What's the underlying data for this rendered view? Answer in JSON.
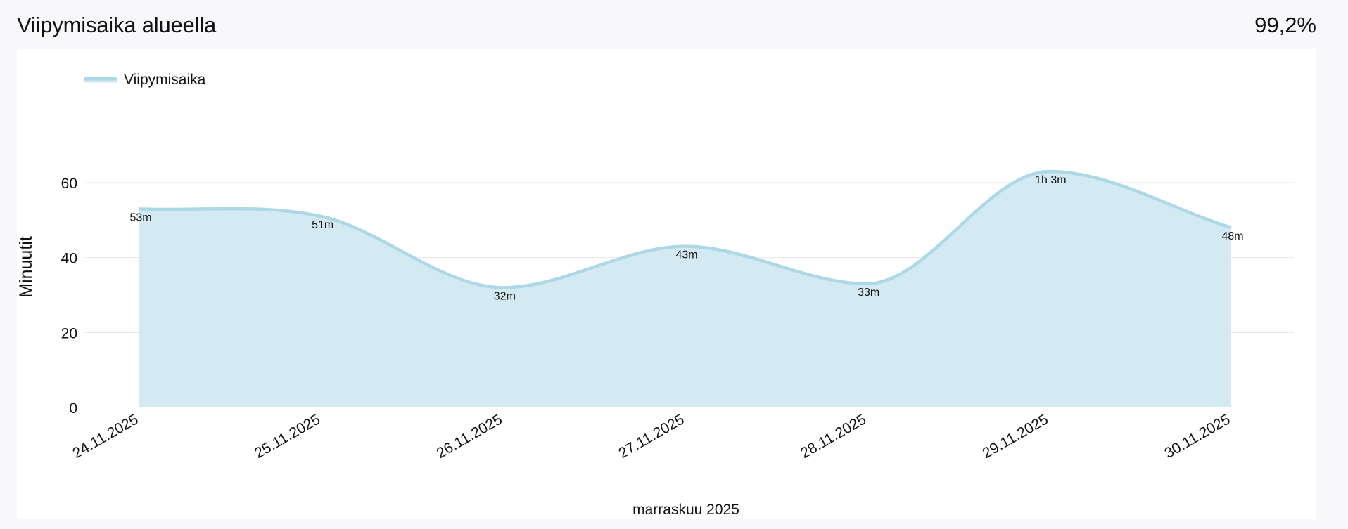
{
  "header": {
    "title": "Viipymisaika alueella",
    "percent": "99,2%"
  },
  "colors": {
    "line": "#ADD8E6",
    "fill": "#D4EAF2",
    "grid": "#E6E6EA",
    "background": "#F8F8FC"
  },
  "chart_data": {
    "type": "area",
    "smooth": true,
    "x": [
      "24.11.2025",
      "25.11.2025",
      "26.11.2025",
      "27.11.2025",
      "28.11.2025",
      "29.11.2025",
      "30.11.2025"
    ],
    "series": [
      {
        "name": "Viipymisaika",
        "values": [
          53,
          51,
          32,
          43,
          33,
          63,
          48
        ],
        "labels": [
          "53m",
          "51m",
          "32m",
          "43m",
          "33m",
          "1h 3m",
          "48m"
        ]
      }
    ],
    "xlabel": "marraskuu 2025",
    "ylabel": "Minuutit",
    "ylim": [
      0,
      60
    ],
    "yticks": [
      "0",
      "20",
      "40",
      "60"
    ],
    "grid": true,
    "legend": "top-left"
  }
}
